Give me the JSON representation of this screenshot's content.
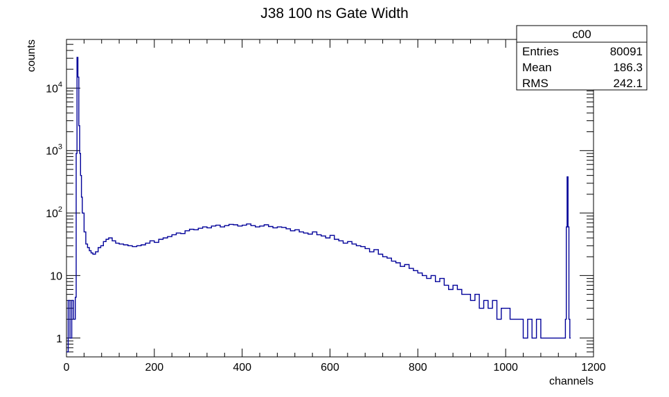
{
  "chart_data": {
    "type": "histogram",
    "title": "J38 100 ns Gate Width",
    "xlabel": "channels",
    "ylabel": "counts",
    "xlim": [
      0,
      1200
    ],
    "ylim": [
      0.5,
      60000
    ],
    "y_scale": "log",
    "x_ticks": [
      "0",
      "200",
      "400",
      "600",
      "800",
      "1000",
      "1200"
    ],
    "y_tick_labels": [
      {
        "value": 1,
        "label": "1"
      },
      {
        "value": 10,
        "label": "10"
      },
      {
        "value": 100,
        "label": "10^2"
      },
      {
        "value": 1000,
        "label": "10^3"
      },
      {
        "value": 10000,
        "label": "10^4"
      }
    ],
    "line_color": "#000099",
    "grid": false,
    "stats_box": {
      "name": "c00",
      "rows": [
        {
          "label": "Entries",
          "value": "80091"
        },
        {
          "label": "Mean",
          "value": "186.3"
        },
        {
          "label": "RMS",
          "value": "242.1"
        }
      ]
    },
    "series": [
      {
        "name": "",
        "x": [
          0,
          4,
          8,
          12,
          16,
          20,
          22,
          24,
          26,
          28,
          30,
          32,
          34,
          36,
          40,
          44,
          48,
          52,
          56,
          60,
          66,
          72,
          78,
          84,
          90,
          96,
          104,
          112,
          120,
          130,
          140,
          150,
          160,
          170,
          180,
          190,
          200,
          210,
          220,
          230,
          240,
          250,
          260,
          270,
          280,
          290,
          300,
          310,
          320,
          330,
          340,
          350,
          360,
          370,
          380,
          390,
          400,
          410,
          420,
          430,
          440,
          450,
          460,
          470,
          480,
          490,
          500,
          510,
          520,
          530,
          540,
          550,
          560,
          570,
          580,
          590,
          600,
          610,
          620,
          630,
          640,
          650,
          660,
          670,
          680,
          690,
          700,
          710,
          720,
          730,
          740,
          750,
          760,
          770,
          780,
          790,
          800,
          810,
          820,
          830,
          840,
          850,
          860,
          870,
          880,
          890,
          900,
          910,
          920,
          930,
          940,
          950,
          960,
          970,
          980,
          990,
          1000,
          1010,
          1020,
          1030,
          1040,
          1050,
          1060,
          1070,
          1080,
          1090,
          1100,
          1110,
          1120,
          1130,
          1136,
          1138,
          1140,
          1142,
          1144,
          1146,
          1148
        ],
        "values": [
          0.6,
          4,
          1,
          4,
          2,
          4.5,
          900,
          31000,
          15000,
          2500,
          900,
          400,
          180,
          100,
          50,
          32,
          28,
          25,
          23,
          22,
          24,
          28,
          30,
          35,
          38,
          40,
          36,
          33,
          32,
          31,
          30,
          29,
          30,
          31,
          33,
          36,
          34,
          38,
          40,
          42,
          45,
          48,
          47,
          52,
          55,
          54,
          57,
          60,
          58,
          62,
          64,
          60,
          63,
          66,
          65,
          62,
          64,
          67,
          63,
          60,
          62,
          65,
          61,
          58,
          60,
          59,
          56,
          52,
          54,
          50,
          48,
          46,
          50,
          45,
          43,
          40,
          44,
          38,
          36,
          33,
          35,
          32,
          30,
          29,
          27,
          24,
          26,
          22,
          20,
          19,
          17,
          16,
          14,
          15,
          13,
          12,
          11,
          10,
          9,
          10,
          8,
          9,
          7,
          6,
          7,
          6,
          5,
          5,
          4,
          5,
          3,
          4,
          3,
          4,
          2,
          3,
          3,
          2,
          2,
          2,
          1,
          2,
          1,
          2,
          1,
          1,
          1,
          1,
          1,
          1,
          2,
          60,
          380,
          60,
          2,
          1
        ]
      }
    ]
  }
}
